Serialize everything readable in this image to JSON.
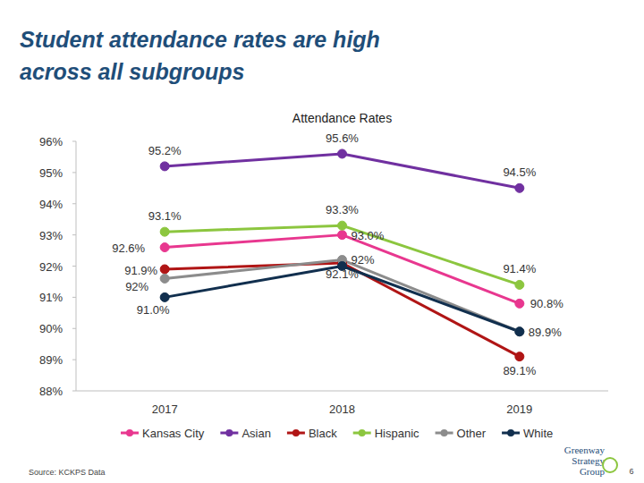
{
  "chart_data": {
    "type": "line",
    "title": "Student attendance rates are high across all subgroups",
    "subtitle": "Attendance Rates",
    "annotations": [
      "Source: KCKPS Data",
      "Greenway",
      "Strategy",
      "Group",
      "6"
    ],
    "categories": [
      "2017",
      "2018",
      "2019"
    ],
    "ylim": [
      88,
      96
    ],
    "yticks": [
      {
        "value": 88,
        "label": "88%"
      },
      {
        "value": 89,
        "label": "89%"
      },
      {
        "value": 90,
        "label": "90%"
      },
      {
        "value": 91,
        "label": "91%"
      },
      {
        "value": 92,
        "label": "92%"
      },
      {
        "value": 93,
        "label": "93%"
      },
      {
        "value": 94,
        "label": "94%"
      },
      {
        "value": 95,
        "label": "95%"
      },
      {
        "value": 96,
        "label": "96%"
      }
    ],
    "grid": false,
    "legend": "bottom",
    "data_labels": true,
    "marker": "circle",
    "series": [
      {
        "name": "Kansas City",
        "color": "#e8378f",
        "values": [
          92.6,
          93.0,
          90.8
        ],
        "value_labels": [
          "92.6%",
          "93.0%",
          "90.8%"
        ]
      },
      {
        "name": "Asian",
        "color": "#7030a0",
        "values": [
          95.2,
          95.6,
          94.5
        ],
        "value_labels": [
          "95.2%",
          "95.6%",
          "94.5%"
        ]
      },
      {
        "name": "Black",
        "color": "#b01515",
        "values": [
          91.9,
          92.1,
          89.1
        ],
        "value_labels": [
          "91.9%",
          "92.1%",
          "89.1%"
        ]
      },
      {
        "name": "Hispanic",
        "color": "#8cc63f",
        "values": [
          93.1,
          93.3,
          91.4
        ],
        "value_labels": [
          "93.1%",
          "93.3%",
          "91.4%"
        ]
      },
      {
        "name": "Other",
        "color": "#8c8c8c",
        "values": [
          91.6,
          92.2,
          89.9
        ],
        "value_labels": [
          "92%",
          "92%",
          null
        ]
      },
      {
        "name": "White",
        "color": "#112f4e",
        "values": [
          91.0,
          92.0,
          89.9
        ],
        "value_labels": [
          "91.0%",
          null,
          "89.9%"
        ]
      }
    ]
  }
}
